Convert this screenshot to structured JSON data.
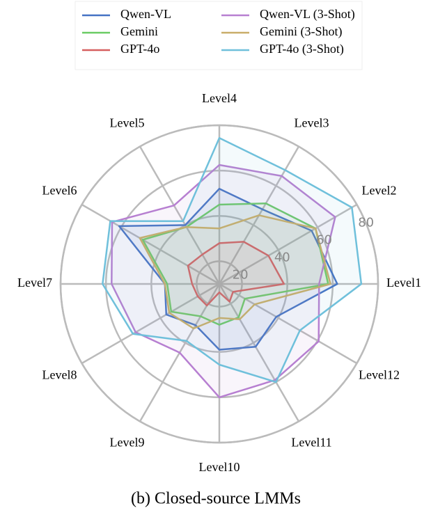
{
  "chart_data": {
    "type": "radar",
    "caption": "(b) Closed-source LMMs",
    "categories": [
      "Level1",
      "Level2",
      "Level3",
      "Level4",
      "Level5",
      "Level6",
      "Level7",
      "Level8",
      "Level9",
      "Level10",
      "Level11",
      "Level12"
    ],
    "rlim": [
      10,
      80
    ],
    "rticks": [
      20,
      40,
      60,
      80
    ],
    "grid": true,
    "legend": "top",
    "series": [
      {
        "name": "Qwen-VL",
        "color": "#4472c4",
        "values": [
          62,
          57,
          48,
          52,
          40,
          61,
          34,
          37,
          31,
          39,
          42,
          39
        ]
      },
      {
        "name": "Gemini",
        "color": "#6acc64",
        "values": [
          58,
          59,
          51,
          45,
          39,
          49,
          33,
          34.5,
          26.5,
          28,
          27,
          23
        ]
      },
      {
        "name": "GPT-4o",
        "color": "#d65f5f",
        "values": [
          38.5,
          35,
          31.5,
          28,
          25,
          26,
          22,
          21,
          21,
          13.7,
          19,
          17
        ]
      },
      {
        "name": "Qwen-VL (3-Shot)",
        "color": "#b77fd1",
        "values": [
          54,
          69,
          65,
          62.5,
          50,
          64.6,
          57.5,
          52.6,
          45,
          60,
          59,
          60.6
        ]
      },
      {
        "name": "Gemini (3-Shot)",
        "color": "#c9ad69",
        "values": [
          59,
          59,
          45,
          34.5,
          39,
          50.5,
          34,
          35.5,
          32.7,
          25,
          28,
          28
        ]
      },
      {
        "name": "GPT-4o (3-Shot)",
        "color": "#6fc0db",
        "values": [
          72.6,
          77.5,
          68,
          74.4,
          42,
          65.5,
          61.5,
          54,
          39,
          45.6,
          60,
          51
        ]
      }
    ]
  }
}
